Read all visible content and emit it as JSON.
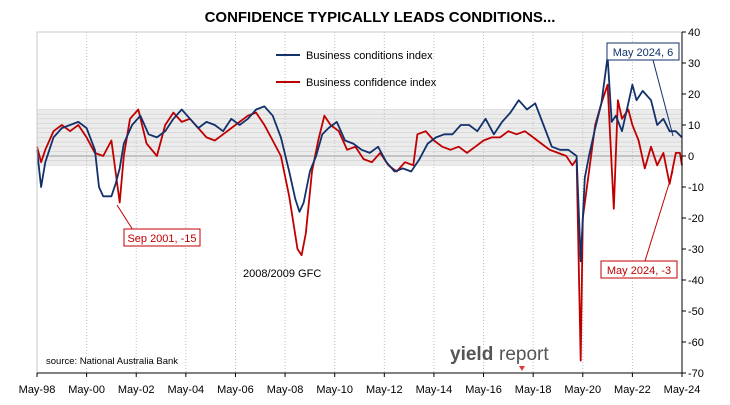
{
  "colors": {
    "conditions": "#13316b",
    "confidence": "#c00000",
    "band": "#dcdcdc",
    "grid": "#bfbfbf",
    "logo_accent": "#e03a3a",
    "logo_text": "#555555"
  },
  "chart_data": {
    "type": "line",
    "title": "CONFIDENCE TYPICALLY LEADS CONDITIONS...",
    "x_tick_labels": [
      "May-98",
      "May-00",
      "May-02",
      "May-04",
      "May-06",
      "May-08",
      "May-10",
      "May-12",
      "May-14",
      "May-16",
      "May-18",
      "May-20",
      "May-22",
      "May-24"
    ],
    "xlim": [
      "1998-05",
      "2024-05"
    ],
    "ylim": [
      -70,
      40
    ],
    "y_ticks": [
      40,
      30,
      20,
      10,
      0,
      -10,
      -20,
      -30,
      -40,
      -50,
      -60,
      -70
    ],
    "y_axis_side": "right",
    "grid": "vertical",
    "shaded_band": [
      -3,
      15
    ],
    "legend": {
      "placement": "top-center",
      "entries": [
        "Business conditions index",
        "Business confidence index"
      ]
    },
    "series": [
      {
        "name": "Business conditions index",
        "color_key": "conditions",
        "points": [
          [
            "1998-05",
            2
          ],
          [
            "1998-07",
            -10
          ],
          [
            "1998-09",
            -2
          ],
          [
            "1999-01",
            6
          ],
          [
            "1999-05",
            9
          ],
          [
            "1999-09",
            10
          ],
          [
            "2000-01",
            11
          ],
          [
            "2000-05",
            9
          ],
          [
            "2000-09",
            2
          ],
          [
            "2000-11",
            -10
          ],
          [
            "2001-01",
            -13
          ],
          [
            "2001-05",
            -13
          ],
          [
            "2001-07",
            -9
          ],
          [
            "2001-09",
            -4
          ],
          [
            "2001-11",
            4
          ],
          [
            "2002-03",
            10
          ],
          [
            "2002-07",
            13
          ],
          [
            "2002-11",
            7
          ],
          [
            "2003-03",
            6
          ],
          [
            "2003-07",
            8
          ],
          [
            "2003-11",
            12
          ],
          [
            "2004-03",
            15
          ],
          [
            "2004-07",
            12
          ],
          [
            "2004-11",
            9
          ],
          [
            "2005-03",
            11
          ],
          [
            "2005-07",
            10
          ],
          [
            "2005-11",
            8
          ],
          [
            "2006-03",
            12
          ],
          [
            "2006-07",
            10
          ],
          [
            "2006-11",
            12
          ],
          [
            "2007-03",
            15
          ],
          [
            "2007-07",
            16
          ],
          [
            "2007-11",
            13
          ],
          [
            "2008-03",
            6
          ],
          [
            "2008-07",
            -5
          ],
          [
            "2008-10",
            -14
          ],
          [
            "2008-12",
            -18
          ],
          [
            "2009-02",
            -15
          ],
          [
            "2009-05",
            -5
          ],
          [
            "2009-08",
            0
          ],
          [
            "2009-11",
            7
          ],
          [
            "2010-02",
            9
          ],
          [
            "2010-06",
            11
          ],
          [
            "2010-10",
            5
          ],
          [
            "2011-02",
            4
          ],
          [
            "2011-06",
            2
          ],
          [
            "2011-10",
            1
          ],
          [
            "2012-02",
            3
          ],
          [
            "2012-06",
            -2
          ],
          [
            "2012-10",
            -5
          ],
          [
            "2013-02",
            -4
          ],
          [
            "2013-06",
            -5
          ],
          [
            "2013-10",
            -1
          ],
          [
            "2014-02",
            4
          ],
          [
            "2014-06",
            6
          ],
          [
            "2014-10",
            7
          ],
          [
            "2015-02",
            7
          ],
          [
            "2015-06",
            10
          ],
          [
            "2015-10",
            10
          ],
          [
            "2016-02",
            8
          ],
          [
            "2016-06",
            12
          ],
          [
            "2016-10",
            7
          ],
          [
            "2017-02",
            11
          ],
          [
            "2017-06",
            14
          ],
          [
            "2017-10",
            18
          ],
          [
            "2018-02",
            15
          ],
          [
            "2018-06",
            17
          ],
          [
            "2018-10",
            10
          ],
          [
            "2019-02",
            3
          ],
          [
            "2019-06",
            2
          ],
          [
            "2019-10",
            2
          ],
          [
            "2020-02",
            0
          ],
          [
            "2020-04",
            -34
          ],
          [
            "2020-06",
            -7
          ],
          [
            "2020-08",
            0
          ],
          [
            "2020-11",
            9
          ],
          [
            "2021-02",
            17
          ],
          [
            "2021-05",
            32
          ],
          [
            "2021-07",
            11
          ],
          [
            "2021-09",
            13
          ],
          [
            "2021-12",
            8
          ],
          [
            "2022-03",
            17
          ],
          [
            "2022-05",
            23
          ],
          [
            "2022-07",
            18
          ],
          [
            "2022-10",
            21
          ],
          [
            "2023-02",
            18
          ],
          [
            "2023-05",
            10
          ],
          [
            "2023-08",
            12
          ],
          [
            "2023-11",
            8
          ],
          [
            "2024-02",
            8
          ],
          [
            "2024-05",
            6
          ]
        ]
      },
      {
        "name": "Business confidence index",
        "color_key": "confidence",
        "points": [
          [
            "1998-05",
            3
          ],
          [
            "1998-07",
            -2
          ],
          [
            "1998-09",
            2
          ],
          [
            "1999-01",
            8
          ],
          [
            "1999-05",
            10
          ],
          [
            "1999-09",
            8
          ],
          [
            "2000-01",
            10
          ],
          [
            "2000-05",
            6
          ],
          [
            "2000-09",
            1
          ],
          [
            "2001-01",
            0
          ],
          [
            "2001-05",
            5
          ],
          [
            "2001-09",
            -15
          ],
          [
            "2001-11",
            0
          ],
          [
            "2002-02",
            12
          ],
          [
            "2002-06",
            15
          ],
          [
            "2002-10",
            4
          ],
          [
            "2003-03",
            0
          ],
          [
            "2003-07",
            10
          ],
          [
            "2003-11",
            14
          ],
          [
            "2004-03",
            11
          ],
          [
            "2004-07",
            12
          ],
          [
            "2004-11",
            9
          ],
          [
            "2005-03",
            6
          ],
          [
            "2005-07",
            5
          ],
          [
            "2005-11",
            7
          ],
          [
            "2006-03",
            9
          ],
          [
            "2006-07",
            11
          ],
          [
            "2006-11",
            13
          ],
          [
            "2007-03",
            14
          ],
          [
            "2007-07",
            10
          ],
          [
            "2007-11",
            5
          ],
          [
            "2008-03",
            0
          ],
          [
            "2008-07",
            -13
          ],
          [
            "2008-11",
            -30
          ],
          [
            "2009-01",
            -32
          ],
          [
            "2009-03",
            -25
          ],
          [
            "2009-06",
            -5
          ],
          [
            "2009-09",
            5
          ],
          [
            "2009-12",
            13
          ],
          [
            "2010-03",
            10
          ],
          [
            "2010-07",
            8
          ],
          [
            "2010-11",
            2
          ],
          [
            "2011-03",
            3
          ],
          [
            "2011-07",
            -1
          ],
          [
            "2011-11",
            -2
          ],
          [
            "2012-03",
            1
          ],
          [
            "2012-07",
            -3
          ],
          [
            "2012-11",
            -5
          ],
          [
            "2013-03",
            -2
          ],
          [
            "2013-07",
            -3
          ],
          [
            "2013-09",
            7
          ],
          [
            "2014-01",
            8
          ],
          [
            "2014-05",
            5
          ],
          [
            "2014-09",
            3
          ],
          [
            "2015-01",
            2
          ],
          [
            "2015-05",
            3
          ],
          [
            "2015-09",
            1
          ],
          [
            "2016-01",
            3
          ],
          [
            "2016-05",
            5
          ],
          [
            "2016-09",
            6
          ],
          [
            "2017-01",
            6
          ],
          [
            "2017-05",
            8
          ],
          [
            "2017-09",
            7
          ],
          [
            "2018-01",
            8
          ],
          [
            "2018-05",
            6
          ],
          [
            "2018-09",
            4
          ],
          [
            "2019-01",
            2
          ],
          [
            "2019-05",
            1
          ],
          [
            "2019-09",
            0
          ],
          [
            "2019-12",
            -3
          ],
          [
            "2020-02",
            -1
          ],
          [
            "2020-04",
            -66
          ],
          [
            "2020-05",
            -20
          ],
          [
            "2020-08",
            -5
          ],
          [
            "2020-11",
            10
          ],
          [
            "2021-02",
            17
          ],
          [
            "2021-05",
            23
          ],
          [
            "2021-08",
            -17
          ],
          [
            "2021-10",
            18
          ],
          [
            "2021-12",
            12
          ],
          [
            "2022-03",
            15
          ],
          [
            "2022-05",
            10
          ],
          [
            "2022-08",
            5
          ],
          [
            "2022-11",
            -4
          ],
          [
            "2023-02",
            3
          ],
          [
            "2023-05",
            -3
          ],
          [
            "2023-08",
            1
          ],
          [
            "2023-11",
            -9
          ],
          [
            "2024-02",
            1
          ],
          [
            "2024-04",
            1
          ],
          [
            "2024-05",
            -3
          ]
        ]
      }
    ],
    "annotations": {
      "conditions_label": "May 2024, 6",
      "confidence_label": "May 2024, -3",
      "sep2001_label": "Sep 2001, -15",
      "gfc_label": "2008/2009 GFC"
    },
    "source": "source: National Australia Bank",
    "logo_left": "yield",
    "logo_right": "report"
  }
}
